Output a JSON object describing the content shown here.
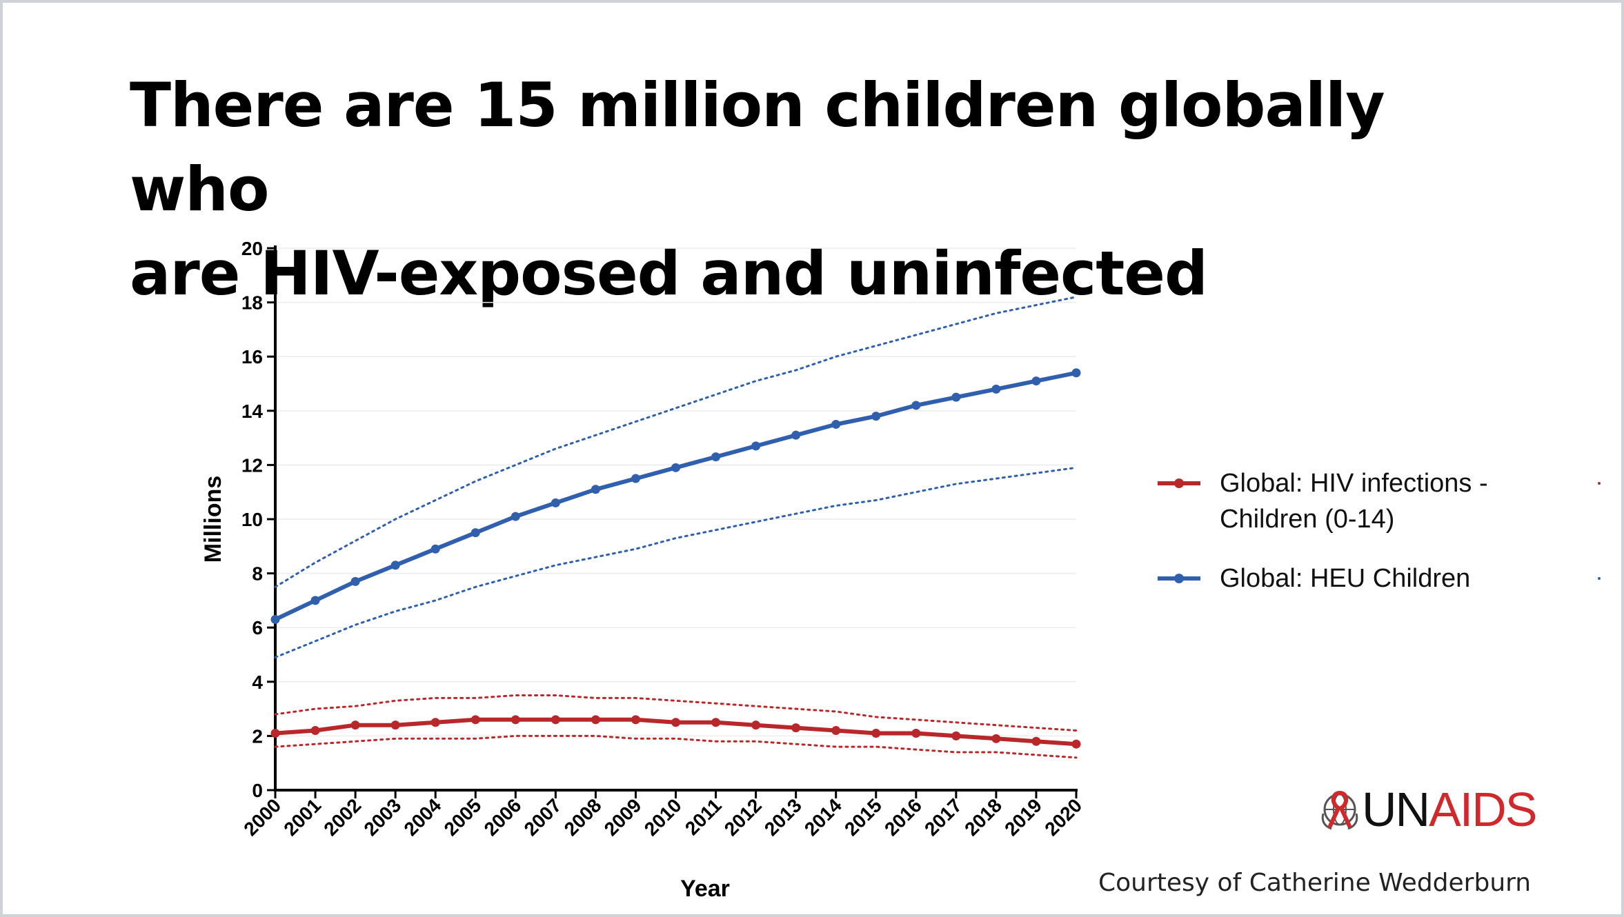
{
  "slide": {
    "title_line1": "There are 15 million children globally who",
    "title_line2": "are HIV-exposed and uninfected",
    "logo": {
      "un": "UN",
      "aids": "AIDS"
    },
    "courtesy": "Courtesy of Catherine Wedderburn"
  },
  "chart_data": {
    "type": "line",
    "xlabel": "Year",
    "ylabel": "Millions",
    "ylim": [
      0,
      20
    ],
    "yticks": [
      0,
      2,
      4,
      6,
      8,
      10,
      12,
      14,
      16,
      18,
      20
    ],
    "grid": true,
    "legend_position": "right",
    "x": [
      "2000",
      "2001",
      "2002",
      "2003",
      "2004",
      "2005",
      "2006",
      "2007",
      "2008",
      "2009",
      "2010",
      "2011",
      "2012",
      "2013",
      "2014",
      "2015",
      "2016",
      "2017",
      "2018",
      "2019",
      "2020"
    ],
    "series": [
      {
        "name": "Global: HIV infections - Children (0-14)",
        "legend_lines": [
          "Global: HIV infections -",
          "Children (0-14)"
        ],
        "color": "#b8282a",
        "values": [
          2.1,
          2.2,
          2.4,
          2.4,
          2.5,
          2.6,
          2.6,
          2.6,
          2.6,
          2.6,
          2.5,
          2.5,
          2.4,
          2.3,
          2.2,
          2.1,
          2.1,
          2.0,
          1.9,
          1.8,
          1.7
        ],
        "upper": [
          2.8,
          3.0,
          3.1,
          3.3,
          3.4,
          3.4,
          3.5,
          3.5,
          3.4,
          3.4,
          3.3,
          3.2,
          3.1,
          3.0,
          2.9,
          2.7,
          2.6,
          2.5,
          2.4,
          2.3,
          2.2
        ],
        "lower": [
          1.6,
          1.7,
          1.8,
          1.9,
          1.9,
          1.9,
          2.0,
          2.0,
          2.0,
          1.9,
          1.9,
          1.8,
          1.8,
          1.7,
          1.6,
          1.6,
          1.5,
          1.4,
          1.4,
          1.3,
          1.2
        ]
      },
      {
        "name": "Global: HEU Children",
        "legend_lines": [
          "Global: HEU Children"
        ],
        "color": "#2f5fad",
        "values": [
          6.3,
          7.0,
          7.7,
          8.3,
          8.9,
          9.5,
          10.1,
          10.6,
          11.1,
          11.5,
          11.9,
          12.3,
          12.7,
          13.1,
          13.5,
          13.8,
          14.2,
          14.5,
          14.8,
          15.1,
          15.4
        ],
        "upper": [
          7.5,
          8.4,
          9.2,
          10.0,
          10.7,
          11.4,
          12.0,
          12.6,
          13.1,
          13.6,
          14.1,
          14.6,
          15.1,
          15.5,
          16.0,
          16.4,
          16.8,
          17.2,
          17.6,
          17.9,
          18.2
        ],
        "lower": [
          4.9,
          5.5,
          6.1,
          6.6,
          7.0,
          7.5,
          7.9,
          8.3,
          8.6,
          8.9,
          9.3,
          9.6,
          9.9,
          10.2,
          10.5,
          10.7,
          11.0,
          11.3,
          11.5,
          11.7,
          11.9
        ]
      }
    ]
  }
}
